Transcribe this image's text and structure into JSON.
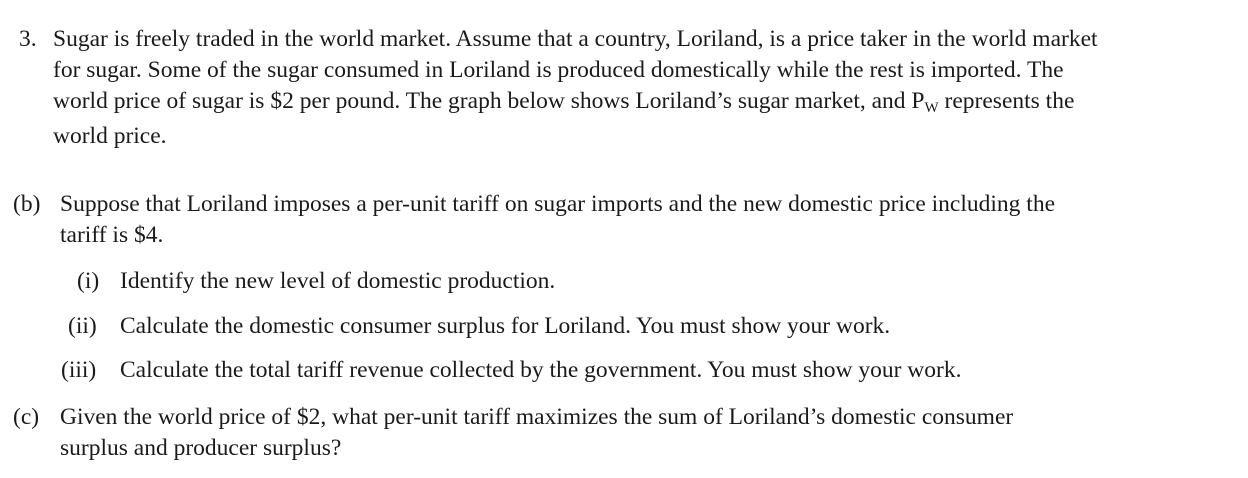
{
  "question": {
    "number": "3.",
    "lines": [
      "Sugar is freely traded in the world market. Assume that a country, Loriland, is a price taker in the world market",
      "for sugar. Some of the sugar consumed in Loriland is produced domestically while the rest is imported. The",
      "world price of sugar is $2 per pound. The graph below shows Loriland’s sugar market, and P"
    ],
    "pw_subscript": "W",
    "line3_end": " represents the",
    "line4": "world price."
  },
  "part_b": {
    "label": "(b)",
    "lines": [
      "Suppose that Loriland imposes a per-unit tariff on sugar imports and the new domestic price including the",
      "tariff is $4."
    ],
    "subparts": [
      {
        "label": "(i)",
        "text": "Identify the new level of domestic production."
      },
      {
        "label": "(ii)",
        "text": "Calculate the domestic consumer surplus for Loriland. You must show your work."
      },
      {
        "label": "(iii)",
        "text": "Calculate the total tariff revenue collected by the government. You must show your work."
      }
    ]
  },
  "part_c": {
    "label": "(c)",
    "lines": [
      "Given the world price of $2, what per-unit tariff maximizes the sum of Loriland’s domestic consumer",
      "surplus and producer surplus?"
    ]
  }
}
